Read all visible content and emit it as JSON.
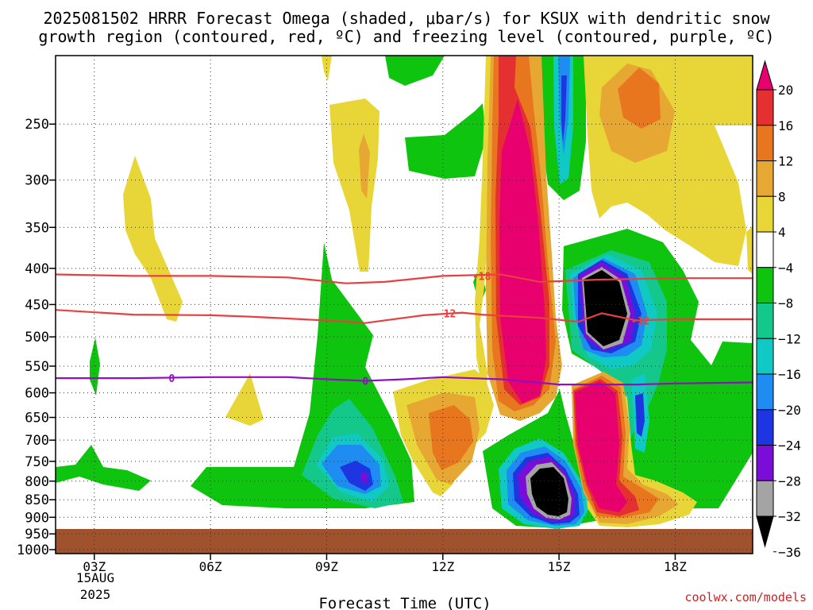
{
  "chart_data": {
    "type": "heatmap",
    "title_line1": "2025081502 HRRR Forecast Omega (shaded, μbar/s) for KSUX with dendritic snow",
    "title_line2": "growth region (contoured, red, ºC) and freezing level (contoured, purple, ºC)",
    "xlabel": "Forecast Time (UTC)",
    "ylabel": "",
    "credit": "coolwx.com/models",
    "x_ticks": [
      "03Z",
      "06Z",
      "09Z",
      "12Z",
      "15Z",
      "18Z"
    ],
    "x_tick_hours": [
      3,
      6,
      9,
      12,
      15,
      18
    ],
    "x_date_lines": [
      "15AUG",
      "2025"
    ],
    "xlim_hours": [
      2,
      20
    ],
    "y_ticks": [
      250,
      300,
      350,
      400,
      450,
      500,
      550,
      600,
      650,
      700,
      750,
      800,
      850,
      900,
      950,
      1000
    ],
    "y_tick_labels": [
      "250",
      "300",
      "350",
      "400",
      "450",
      "500",
      "550",
      "600",
      "650",
      "700",
      "750",
      "800",
      "850",
      "900",
      "950",
      "1000"
    ],
    "ylim_hpa": [
      200,
      1013
    ],
    "y_scale": "log-pressure",
    "grid": true,
    "ground_top_hpa": 975,
    "colorbar": {
      "labels": [
        "20",
        "16",
        "12",
        "8",
        "4",
        "−4",
        "−8",
        "−12",
        "−16",
        "−20",
        "−24",
        "−28",
        "−32",
        "−36"
      ],
      "colors": [
        "#e8006e",
        "#e43030",
        "#e8761e",
        "#e6a832",
        "#e8d638",
        "#ffffff",
        "#0ec40e",
        "#14c88c",
        "#10c8c4",
        "#1e8cf0",
        "#1e36e2",
        "#7a0ed8",
        "#a4a4a4",
        "#000000"
      ]
    },
    "contours": [
      {
        "label": "-18",
        "color": "#e84040",
        "points": [
          [
            2.0,
            408
          ],
          [
            4.0,
            410
          ],
          [
            6.0,
            410
          ],
          [
            8.0,
            412
          ],
          [
            9.5,
            420
          ],
          [
            10.5,
            418
          ],
          [
            12.0,
            410
          ],
          [
            13.5,
            408
          ],
          [
            14.5,
            418
          ],
          [
            16.0,
            415
          ],
          [
            18.0,
            413
          ],
          [
            20.0,
            413
          ]
        ]
      },
      {
        "label": "-12",
        "color": "#e84040",
        "points": [
          [
            2.0,
            458
          ],
          [
            4.0,
            465
          ],
          [
            6.0,
            466
          ],
          [
            7.0,
            468
          ],
          [
            9.0,
            474
          ],
          [
            10.0,
            478
          ],
          [
            11.5,
            466
          ],
          [
            12.5,
            462
          ],
          [
            13.0,
            465
          ],
          [
            14.5,
            470
          ],
          [
            15.5,
            476
          ],
          [
            16.1,
            463
          ],
          [
            17.0,
            474
          ],
          [
            18.0,
            472
          ],
          [
            20.0,
            472
          ]
        ]
      },
      {
        "label": "0",
        "color": "#9010c0",
        "points": [
          [
            2.0,
            572
          ],
          [
            4.0,
            572
          ],
          [
            6.0,
            570
          ],
          [
            8.0,
            570
          ],
          [
            9.0,
            574
          ],
          [
            10.0,
            577
          ],
          [
            11.0,
            574
          ],
          [
            12.0,
            570
          ],
          [
            13.5,
            574
          ],
          [
            15.0,
            584
          ],
          [
            16.0,
            584
          ],
          [
            17.0,
            584
          ],
          [
            18.0,
            582
          ],
          [
            20.0,
            580
          ]
        ]
      }
    ],
    "contour_labels": [
      {
        "label": "-18",
        "hour": 13.0,
        "hpa": 410
      },
      {
        "label": "-12",
        "hour": 12.1,
        "hpa": 463
      },
      {
        "label": "-12",
        "hour": 17.1,
        "hpa": 474
      },
      {
        "label": "0",
        "hour": 5.0,
        "hpa": 572
      },
      {
        "label": "0",
        "hour": 10.0,
        "hpa": 577
      }
    ]
  }
}
